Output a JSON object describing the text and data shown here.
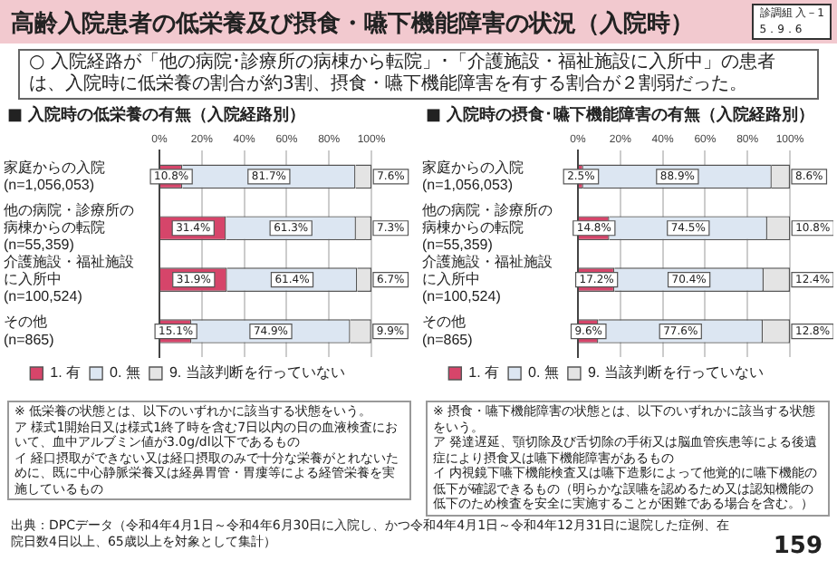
{
  "chart_data": [
    {
      "type": "other",
      "title": "高齢入院患者の低栄養及び摂食・嚥下機能障害の状況（入院時）",
      "subtitle": "○ 入院経路が「他の病院･診療所の病棟から転院」･「介護施設・福祉施設に入所中」の患者は、入院時に低栄養の割合が約3割、摂食・嚥下機能障害を有する割合が２割弱だった。",
      "annotations": [
        "診調組 入－1\n5．9．6",
        "出典：DPCデータ（令和4年4月1日～令和4年6月30日に入院し、かつ令和4年4月1日～令和4年12月31日に退院した症例、在院日数4日以上、65歳以上を対象として集計）",
        "159"
      ]
    },
    {
      "type": "bar",
      "orientation": "horizontal",
      "stacked": true,
      "title": "■ 入院時の低栄養の有無（入院経路別）",
      "categories": [
        "家庭からの入院(n=1,056,053)",
        "他の病院・診療所の病棟からの転院(n=55,359)",
        "介護施設・福祉施設に入所中(n=100,524)",
        "その他(n=865)"
      ],
      "series": [
        {
          "name": "1. 有",
          "color": "#d6456a",
          "values": [
            10.8,
            31.4,
            31.9,
            15.1
          ],
          "value_labels": [
            "10.8%",
            "31.4%",
            "31.9%",
            "15.1%"
          ]
        },
        {
          "name": "0. 無",
          "color": "#dce6f2",
          "values": [
            81.7,
            61.3,
            61.4,
            74.9
          ],
          "value_labels": [
            "81.7%",
            "61.3%",
            "61.4%",
            "74.9%"
          ]
        },
        {
          "name": "9. 当該判断を行っていない",
          "color": "#e4e4e4",
          "values": [
            7.6,
            7.3,
            6.7,
            9.9
          ],
          "value_labels": [
            "7.6%",
            "7.3%",
            "6.7%",
            "9.9%"
          ]
        }
      ],
      "xlim": [
        0,
        100
      ],
      "xticks": [
        {
          "value": 0,
          "label": "0%"
        },
        {
          "value": 20,
          "label": "20%"
        },
        {
          "value": 40,
          "label": "40%"
        },
        {
          "value": 60,
          "label": "60%"
        },
        {
          "value": 80,
          "label": "80%"
        },
        {
          "value": 100,
          "label": "100%"
        }
      ],
      "grid": "x",
      "legend": "bottom",
      "annotations": [
        "※ 低栄養の状態とは、以下のいずれかに該当する状態をいう。",
        "ア 様式1開始日又は様式1終了時を含む7日以内の日の血液検査において、血中アルブミン値が3.0g/dl以下であるもの",
        "イ 経口摂取ができない又は経口摂取のみで十分な栄養がとれないために、既に中心静脈栄養又は経鼻胃管・胃瘻等による経管栄養を実施しているもの"
      ]
    },
    {
      "type": "bar",
      "orientation": "horizontal",
      "stacked": true,
      "title": "■ 入院時の摂食･嚥下機能障害の有無（入院経路別）",
      "categories": [
        "家庭からの入院(n=1,056,053)",
        "他の病院・診療所の病棟からの転院(n=55,359)",
        "介護施設・福祉施設に入所中(n=100,524)",
        "その他(n=865)"
      ],
      "series": [
        {
          "name": "1. 有",
          "color": "#d6456a",
          "values": [
            2.5,
            14.8,
            17.2,
            9.6
          ],
          "value_labels": [
            "2.5%",
            "14.8%",
            "17.2%",
            "9.6%"
          ]
        },
        {
          "name": "0. 無",
          "color": "#dce6f2",
          "values": [
            88.9,
            74.5,
            70.4,
            77.6
          ],
          "value_labels": [
            "88.9%",
            "74.5%",
            "70.4%",
            "77.6%"
          ]
        },
        {
          "name": "9. 当該判断を行っていない",
          "color": "#e4e4e4",
          "values": [
            8.6,
            10.8,
            12.4,
            12.8
          ],
          "value_labels": [
            "8.6%",
            "10.8%",
            "12.4%",
            "12.8%"
          ]
        }
      ],
      "xlim": [
        0,
        100
      ],
      "xticks": [
        {
          "value": 0,
          "label": "0%"
        },
        {
          "value": 20,
          "label": "20%"
        },
        {
          "value": 40,
          "label": "40%"
        },
        {
          "value": 60,
          "label": "60%"
        },
        {
          "value": 80,
          "label": "80%"
        },
        {
          "value": 100,
          "label": "100%"
        }
      ],
      "grid": "x",
      "legend": "bottom",
      "annotations": [
        "※ 摂食・嚥下機能障害の状態とは、以下のいずれかに該当する状態をいう。",
        "ア 発達遅延、顎切除及び舌切除の手術又は脳血管疾患等による後遺症により摂食又は嚥下機能障害があるもの",
        "イ 内視鏡下嚥下機能検査又は嚥下造影によって他覚的に嚥下機能の低下が確認できるもの（明らかな誤嚥を認めるため又は認知機能の低下のため検査を安全に実施することが困難である場合を含む。）"
      ]
    }
  ]
}
